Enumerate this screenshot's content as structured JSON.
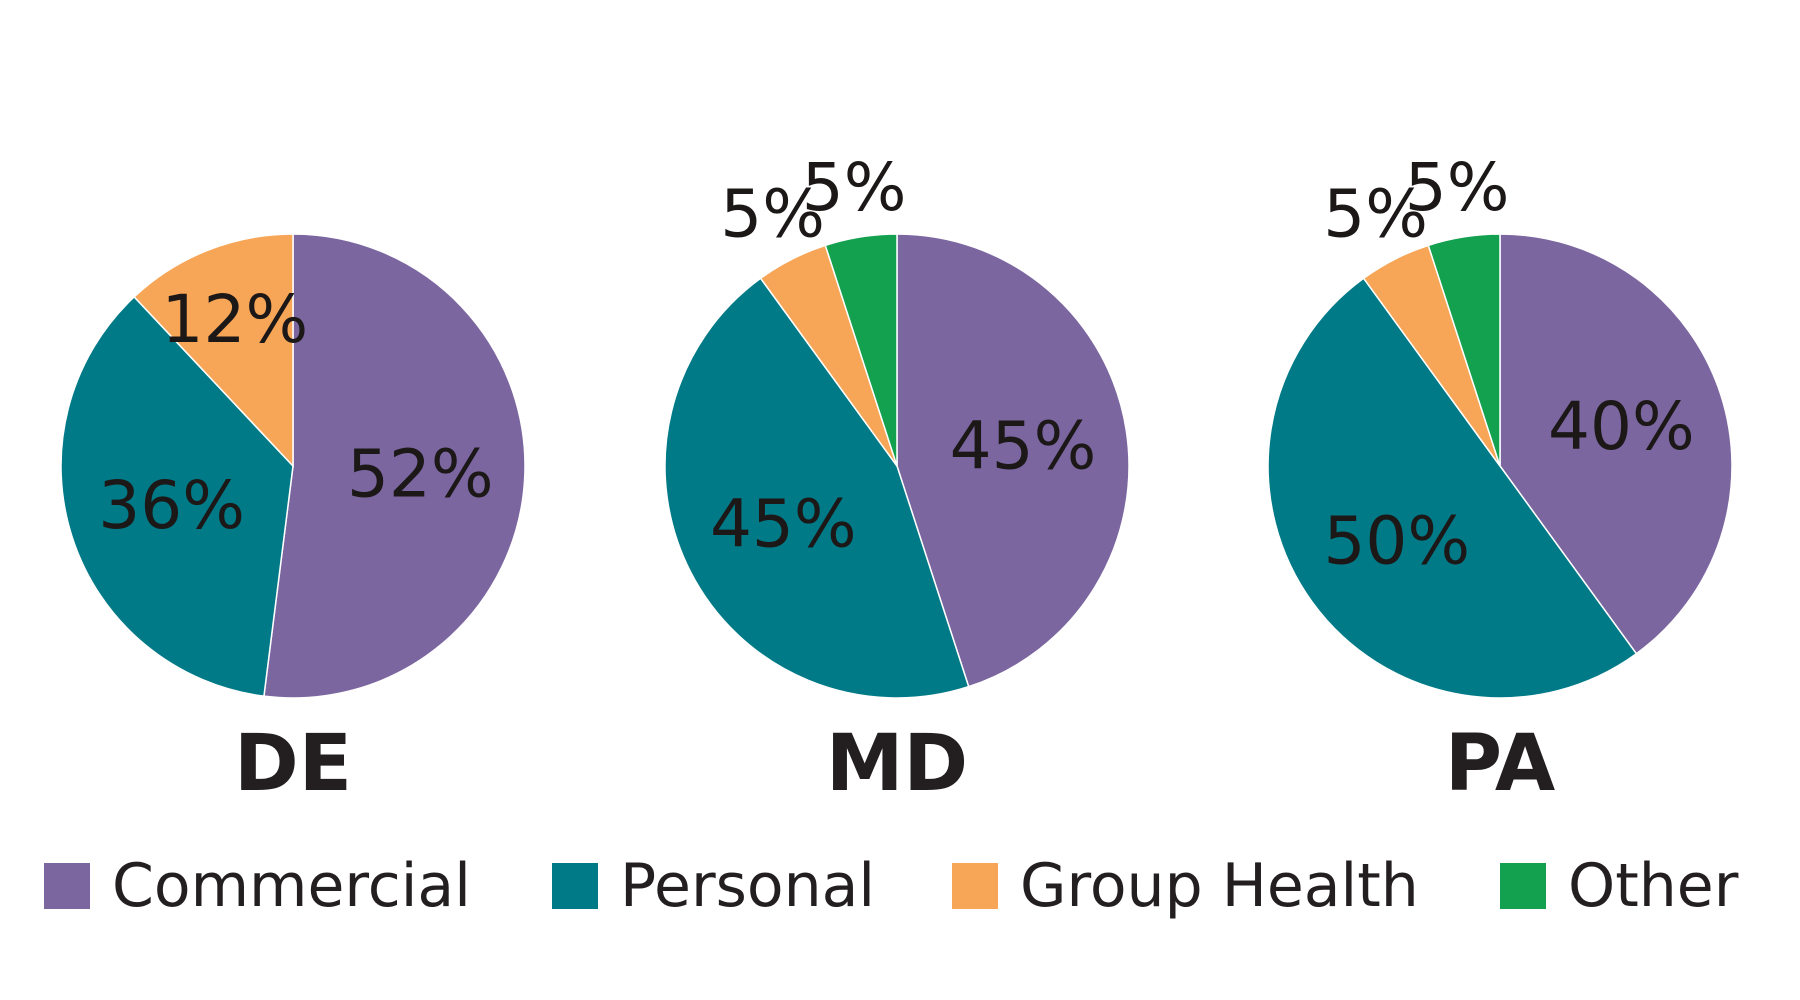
{
  "legend": [
    {
      "label": "Commercial",
      "color": "#7B66A0"
    },
    {
      "label": "Personal",
      "color": "#007A87"
    },
    {
      "label": "Group Health",
      "color": "#F7A556"
    },
    {
      "label": "Other",
      "color": "#13A14F"
    }
  ],
  "chart_data": [
    {
      "type": "pie",
      "title": "DE",
      "categories": [
        "Commercial",
        "Personal",
        "Group Health"
      ],
      "values": [
        52,
        36,
        12
      ],
      "labels": [
        "52%",
        "36%",
        "12%"
      ]
    },
    {
      "type": "pie",
      "title": "MD",
      "categories": [
        "Commercial",
        "Personal",
        "Group Health",
        "Other"
      ],
      "values": [
        45,
        45,
        5,
        5
      ],
      "labels": [
        "45%",
        "45%",
        "5%",
        "5%"
      ]
    },
    {
      "type": "pie",
      "title": "PA",
      "categories": [
        "Commercial",
        "Personal",
        "Group Health",
        "Other"
      ],
      "values": [
        40,
        50,
        5,
        5
      ],
      "labels": [
        "40%",
        "50%",
        "5%",
        "5%"
      ]
    }
  ]
}
